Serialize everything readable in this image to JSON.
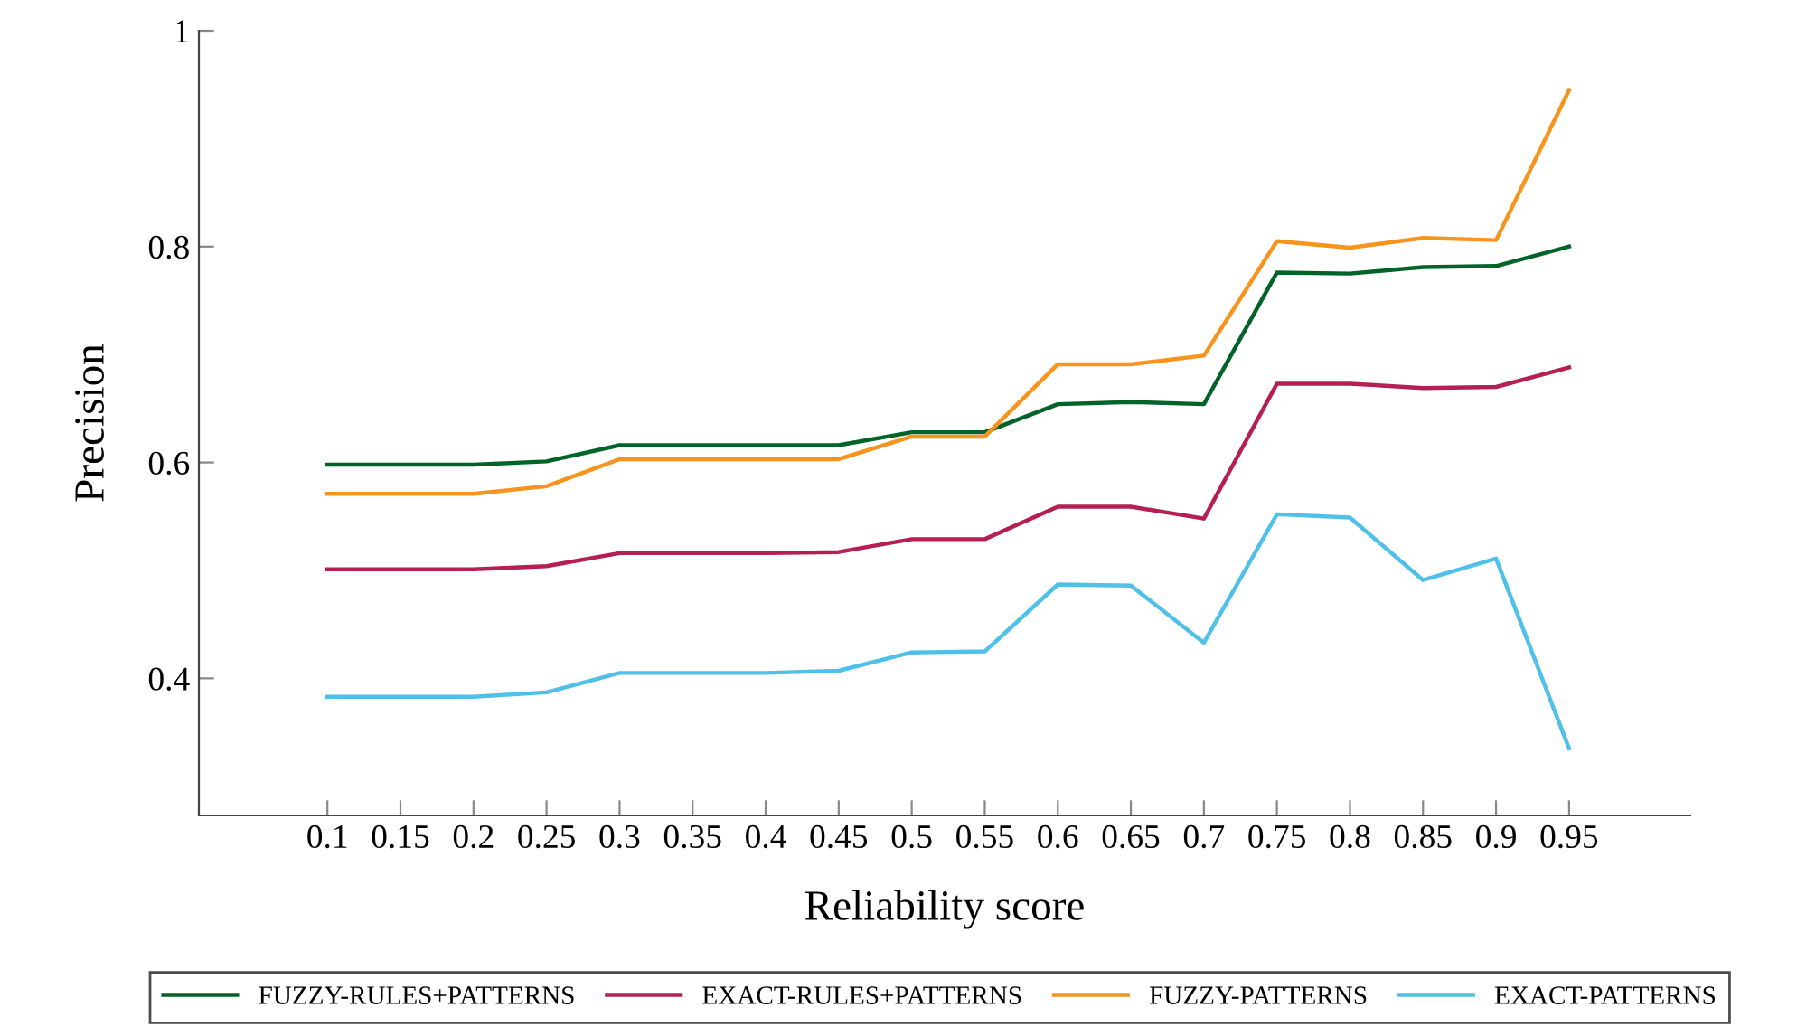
{
  "chart_data": {
    "type": "line",
    "xlabel": "Reliability score",
    "ylabel": "Precision",
    "x": [
      0.1,
      0.15,
      0.2,
      0.25,
      0.3,
      0.35,
      0.4,
      0.45,
      0.5,
      0.55,
      0.6,
      0.65,
      0.7,
      0.75,
      0.8,
      0.85,
      0.9,
      0.95
    ],
    "series": [
      {
        "name": "FUZZY-RULES+PATTERNS",
        "color": "#006428",
        "values": [
          0.598,
          0.598,
          0.598,
          0.601,
          0.616,
          0.616,
          0.616,
          0.616,
          0.628,
          0.628,
          0.654,
          0.656,
          0.654,
          0.776,
          0.775,
          0.781,
          0.782,
          0.8
        ]
      },
      {
        "name": "EXACT-RULES+PATTERNS",
        "color": "#b51f53",
        "values": [
          0.501,
          0.501,
          0.501,
          0.504,
          0.516,
          0.516,
          0.516,
          0.517,
          0.529,
          0.529,
          0.559,
          0.559,
          0.548,
          0.673,
          0.673,
          0.669,
          0.67,
          0.688
        ]
      },
      {
        "name": "FUZZY-PATTERNS",
        "color": "#f7941d",
        "values": [
          0.571,
          0.571,
          0.571,
          0.578,
          0.603,
          0.603,
          0.603,
          0.603,
          0.624,
          0.624,
          0.691,
          0.691,
          0.699,
          0.805,
          0.799,
          0.808,
          0.806,
          0.945
        ]
      },
      {
        "name": "EXACT-PATTERNS",
        "color": "#4fc0e8",
        "values": [
          0.383,
          0.383,
          0.383,
          0.387,
          0.405,
          0.405,
          0.405,
          0.407,
          0.424,
          0.425,
          0.487,
          0.486,
          0.433,
          0.552,
          0.549,
          0.491,
          0.511,
          0.335
        ]
      }
    ],
    "xlim": [
      0.012,
      1.033
    ],
    "ylim": [
      0.273,
      1.0
    ],
    "xticks": [
      0.1,
      0.15,
      0.2,
      0.25,
      0.3,
      0.35,
      0.4,
      0.45,
      0.5,
      0.55,
      0.6,
      0.65,
      0.7,
      0.75,
      0.8,
      0.85,
      0.9,
      0.95
    ],
    "yticks": [
      0.4,
      0.6,
      0.8,
      1
    ],
    "grid": false,
    "legend": "bottom",
    "marker": "none",
    "line_style": "solid"
  }
}
